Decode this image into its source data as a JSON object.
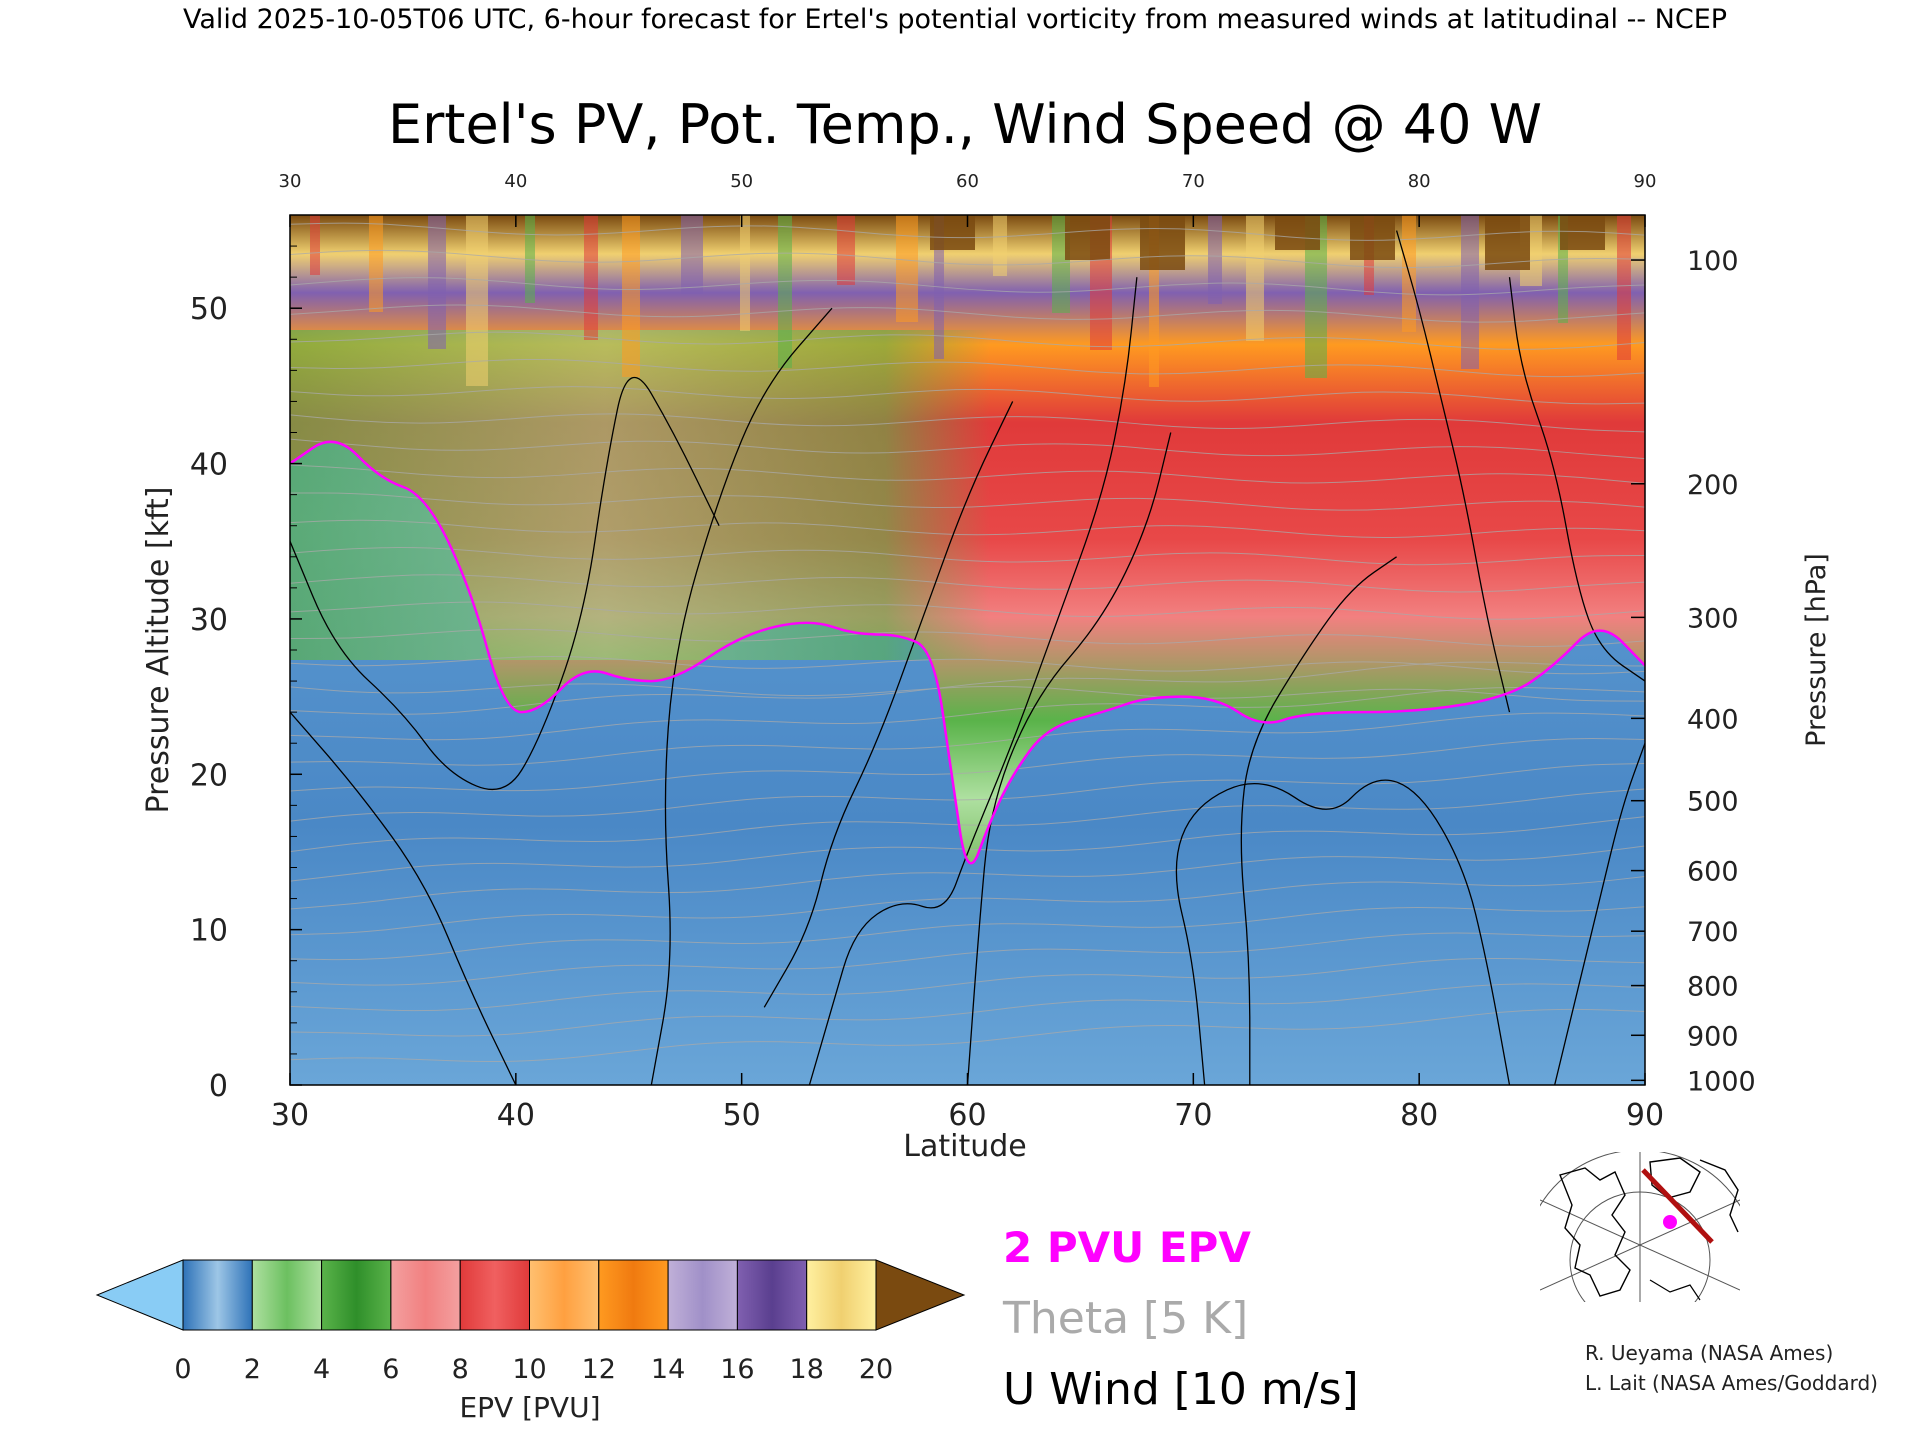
{
  "header": {
    "valid_line": "Valid 2025-10-05T06 UTC, 6-hour forecast for Ertel's potential vorticity from measured winds at latitudinal -- NCEP"
  },
  "chart_data": {
    "type": "heatmap",
    "title": "Ertel's PV, Pot. Temp., Wind Speed @ 40 W",
    "xlabel": "Latitude",
    "ylabel": "Pressure Altitude [kft]",
    "ylabel_right": "Pressure [hPa]",
    "xlim": [
      30,
      90
    ],
    "ylim": [
      0,
      56
    ],
    "x_ticks": [
      "30",
      "40",
      "50",
      "60",
      "70",
      "80",
      "90"
    ],
    "x_ticks_top": [
      "30",
      "40",
      "50",
      "60",
      "70",
      "80",
      "90"
    ],
    "y_ticks": [
      "0",
      "10",
      "20",
      "30",
      "40",
      "50"
    ],
    "pressure_ticks": [
      {
        "label": "100",
        "kft": 53.1
      },
      {
        "label": "200",
        "kft": 38.7
      },
      {
        "label": "300",
        "kft": 30.1
      },
      {
        "label": "400",
        "kft": 23.6
      },
      {
        "label": "500",
        "kft": 18.3
      },
      {
        "label": "600",
        "kft": 13.8
      },
      {
        "label": "700",
        "kft": 9.9
      },
      {
        "label": "800",
        "kft": 6.4
      },
      {
        "label": "900",
        "kft": 3.2
      },
      {
        "label": "1000",
        "kft": 0.3
      }
    ],
    "tropopause_2pvu_kft": [
      {
        "lat": 30,
        "alt": 40
      },
      {
        "lat": 32,
        "alt": 42
      },
      {
        "lat": 34,
        "alt": 39
      },
      {
        "lat": 36,
        "alt": 38
      },
      {
        "lat": 38,
        "alt": 32
      },
      {
        "lat": 39.5,
        "alt": 24
      },
      {
        "lat": 41,
        "alt": 24
      },
      {
        "lat": 43,
        "alt": 27
      },
      {
        "lat": 45,
        "alt": 26
      },
      {
        "lat": 47,
        "alt": 26
      },
      {
        "lat": 50,
        "alt": 29
      },
      {
        "lat": 53,
        "alt": 30
      },
      {
        "lat": 55,
        "alt": 29
      },
      {
        "lat": 57,
        "alt": 29
      },
      {
        "lat": 58.5,
        "alt": 28
      },
      {
        "lat": 59.3,
        "alt": 20
      },
      {
        "lat": 60,
        "alt": 13
      },
      {
        "lat": 61,
        "alt": 17
      },
      {
        "lat": 62,
        "alt": 20
      },
      {
        "lat": 63.5,
        "alt": 23
      },
      {
        "lat": 66,
        "alt": 24
      },
      {
        "lat": 68,
        "alt": 25
      },
      {
        "lat": 71,
        "alt": 25
      },
      {
        "lat": 73,
        "alt": 23
      },
      {
        "lat": 75,
        "alt": 24
      },
      {
        "lat": 80,
        "alt": 24
      },
      {
        "lat": 84,
        "alt": 25
      },
      {
        "lat": 86,
        "alt": 27
      },
      {
        "lat": 88,
        "alt": 30
      },
      {
        "lat": 90,
        "alt": 27
      }
    ],
    "colorbar": {
      "label": "EPV [PVU]",
      "tick_labels": [
        "0",
        "2",
        "4",
        "6",
        "8",
        "10",
        "12",
        "14",
        "16",
        "18",
        "20"
      ],
      "bands": [
        [
          "#2e72b8",
          "#9dc6e6"
        ],
        [
          "#aee0a0",
          "#6cc060"
        ],
        [
          "#5ab34a",
          "#2f8f2a"
        ],
        [
          "#f3a0a0",
          "#f28080"
        ],
        [
          "#e03a3a",
          "#f06060"
        ],
        [
          "#ffc070",
          "#ffa040"
        ],
        [
          "#ff9a20",
          "#f07a10"
        ],
        [
          "#c0b0d8",
          "#a090c8"
        ],
        [
          "#8060b0",
          "#5a3f8f"
        ],
        [
          "#fff0a0",
          "#f0d070"
        ]
      ],
      "under_color": "#89ccf5",
      "over_color": "#7a4a10"
    }
  },
  "legend": {
    "epv_line": "2 PVU EPV",
    "theta": "Theta [5 K]",
    "u_wind": "U Wind [10 m/s]",
    "colors": {
      "epv": "#ff00ff",
      "theta": "#aaaaaa",
      "u_wind": "#000000"
    }
  },
  "credits": {
    "line1": "R. Ueyama (NASA Ames)",
    "line2": "L. Lait (NASA Ames/Goddard)"
  },
  "inset_map": {
    "track_color": "#b01010",
    "marker_color": "#ff00ff"
  }
}
